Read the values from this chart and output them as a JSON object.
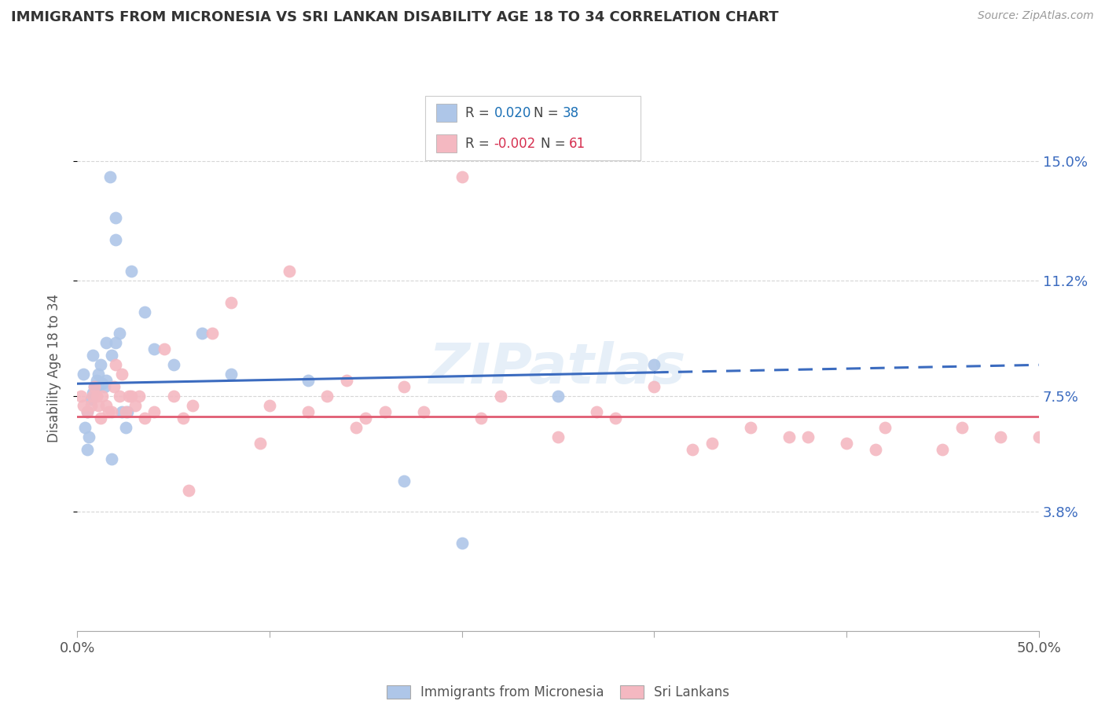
{
  "title": "IMMIGRANTS FROM MICRONESIA VS SRI LANKAN DISABILITY AGE 18 TO 34 CORRELATION CHART",
  "source": "Source: ZipAtlas.com",
  "ylabel": "Disability Age 18 to 34",
  "ytick_values": [
    3.8,
    7.5,
    11.2,
    15.0
  ],
  "xlim": [
    0.0,
    50.0
  ],
  "ylim": [
    0.0,
    16.8
  ],
  "legend_label1": "Immigrants from Micronesia",
  "legend_label2": "Sri Lankans",
  "blue_color": "#aec6e8",
  "blue_line_color": "#3b6bbf",
  "pink_color": "#f4b8c1",
  "pink_line_color": "#e05c72",
  "r_color": "#1a6fb5",
  "pink_r_color": "#d63050",
  "blue_x": [
    0.3,
    0.4,
    0.5,
    0.6,
    0.7,
    0.8,
    0.8,
    1.0,
    1.0,
    1.1,
    1.2,
    1.3,
    1.5,
    1.5,
    1.8,
    2.0,
    2.0,
    2.2,
    2.3,
    2.5,
    2.8,
    3.5,
    4.0,
    5.0,
    6.5,
    8.0,
    12.0,
    17.0,
    20.0,
    25.0,
    30.0,
    1.7,
    2.0,
    0.5,
    0.9,
    1.4,
    2.6,
    1.8
  ],
  "blue_y": [
    8.2,
    6.5,
    7.0,
    6.2,
    7.4,
    7.6,
    8.8,
    8.0,
    7.8,
    8.2,
    8.5,
    7.9,
    8.0,
    9.2,
    8.8,
    9.2,
    13.2,
    9.5,
    7.0,
    6.5,
    11.5,
    10.2,
    9.0,
    8.5,
    9.5,
    8.2,
    8.0,
    4.8,
    2.8,
    7.5,
    8.5,
    14.5,
    12.5,
    5.8,
    7.8,
    7.8,
    7.0,
    5.5
  ],
  "pink_x": [
    0.2,
    0.3,
    0.5,
    0.7,
    0.8,
    0.9,
    1.0,
    1.1,
    1.2,
    1.3,
    1.5,
    1.6,
    1.8,
    1.9,
    2.0,
    2.2,
    2.3,
    2.5,
    2.7,
    2.8,
    3.0,
    3.2,
    3.5,
    4.0,
    4.5,
    5.0,
    5.5,
    5.8,
    6.0,
    7.0,
    8.0,
    9.5,
    10.0,
    11.0,
    12.0,
    13.0,
    14.0,
    14.5,
    15.0,
    16.0,
    17.0,
    18.0,
    20.0,
    21.0,
    22.0,
    25.0,
    27.0,
    28.0,
    30.0,
    32.0,
    33.0,
    35.0,
    37.0,
    38.0,
    40.0,
    41.5,
    42.0,
    45.0,
    46.0,
    48.0,
    50.0
  ],
  "pink_y": [
    7.5,
    7.2,
    7.0,
    7.2,
    7.5,
    7.8,
    7.5,
    7.2,
    6.8,
    7.5,
    7.2,
    7.0,
    7.0,
    7.8,
    8.5,
    7.5,
    8.2,
    7.0,
    7.5,
    7.5,
    7.2,
    7.5,
    6.8,
    7.0,
    9.0,
    7.5,
    6.8,
    4.5,
    7.2,
    9.5,
    10.5,
    6.0,
    7.2,
    11.5,
    7.0,
    7.5,
    8.0,
    6.5,
    6.8,
    7.0,
    7.8,
    7.0,
    14.5,
    6.8,
    7.5,
    6.2,
    7.0,
    6.8,
    7.8,
    5.8,
    6.0,
    6.5,
    6.2,
    6.2,
    6.0,
    5.8,
    6.5,
    5.8,
    6.5,
    6.2,
    6.2
  ],
  "blue_trend_x0": 0.0,
  "blue_trend_x1": 50.0,
  "blue_trend_y0": 7.9,
  "blue_trend_y1": 8.5,
  "blue_dash_start_x": 30.0,
  "pink_trend_y": 6.85,
  "watermark": "ZIPatlas",
  "grid_color": "#cccccc",
  "bg_color": "#ffffff"
}
